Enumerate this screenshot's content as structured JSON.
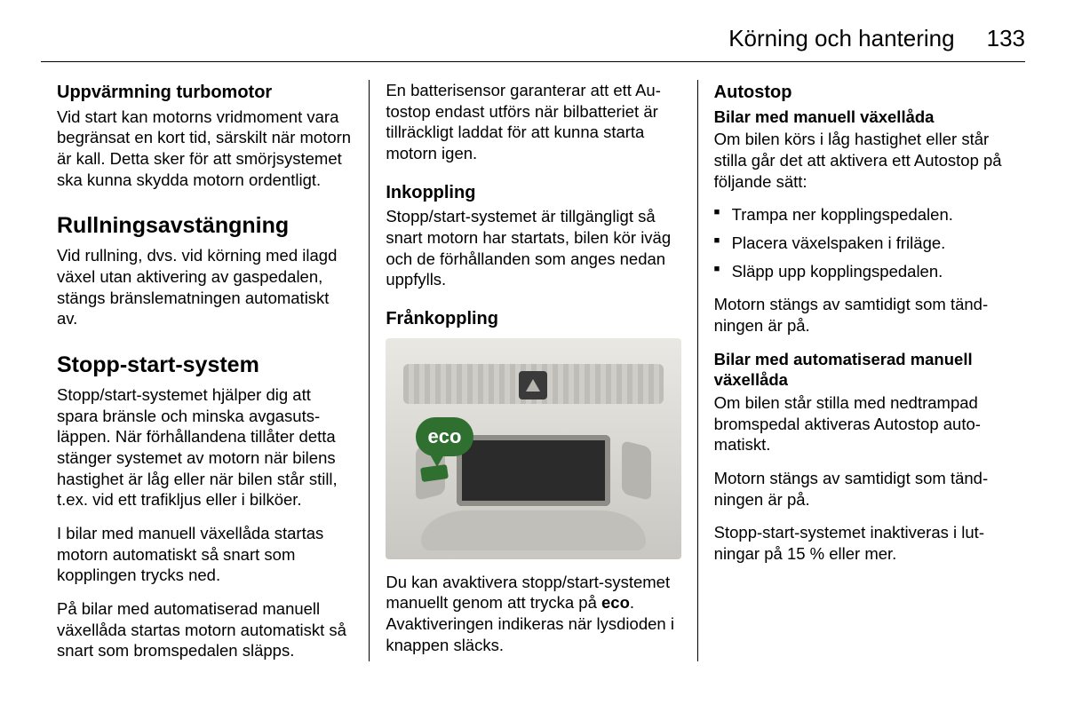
{
  "header": {
    "title": "Körning och hantering",
    "page": "133"
  },
  "col1": {
    "turbo": {
      "heading": "Uppvärmning turbomotor",
      "p1": "Vid start kan motorns vridmoment vara begränsat en kort tid, särskilt när motorn är kall. Detta sker för att smörjsystemet ska kunna skydda motorn ordentligt."
    },
    "rull": {
      "heading": "Rullningsavstängning",
      "p1": "Vid rullning, dvs. vid körning med ilagd växel utan aktivering av gas­pedalen, stängs bränslematningen automatiskt av."
    },
    "sss": {
      "heading": "Stopp-start-system",
      "p1": "Stopp/start-systemet hjälper dig att spara bränsle och minska avgasuts­läppen. När förhållandena tillåter detta stänger systemet av motorn när bilens hastighet är låg eller när bilen står still, t.ex. vid ett trafikljus eller i bilköer.",
      "p2": "I bilar med manuell växellåda startas motorn automatiskt så snart som kopplingen trycks ned.",
      "p3": "På bilar med automatiserad manuell växellåda startas motorn automatiskt så snart som bromspedalen släpps."
    }
  },
  "col2": {
    "intro": "En batterisensor garanterar att ett Au­tostop endast utförs när bilbatteriet är tillräckligt laddat för att kunna starta motorn igen.",
    "inkopp": {
      "heading": "Inkoppling",
      "p1": "Stopp/start-systemet är tillgängligt så snart motorn har startats, bilen kör iväg och de förhållanden som anges nedan uppfylls."
    },
    "frankopp": {
      "heading": "Frånkoppling",
      "eco_label": "eco",
      "caption_a": "Du kan avaktivera stopp/start-sys­temet manuellt genom att trycka på ",
      "caption_eco": "eco",
      "caption_b": ". Avaktiveringen indikeras när lys­dioden i knappen släcks."
    }
  },
  "col3": {
    "autostop": {
      "heading": "Autostop",
      "sub1": "Bilar med manuell växellåda",
      "p1": "Om bilen körs i låg hastighet eller står stilla går det att aktivera ett Autostop på följande sätt:",
      "bullets": [
        "Trampa ner kopplingspedalen.",
        "Placera växelspaken i friläge.",
        "Släpp upp kopplingspedalen."
      ],
      "p2": "Motorn stängs av samtidigt som tänd­ningen är på.",
      "sub2": "Bilar med automatiserad manuell växellåda",
      "p3": "Om bilen står stilla med nedtrampad bromspedal aktiveras Autostop auto­matiskt.",
      "p4": "Motorn stängs av samtidigt som tänd­ningen är på.",
      "p5": "Stopp-start-systemet inaktiveras i lut­ningar på 15 % eller mer."
    }
  }
}
